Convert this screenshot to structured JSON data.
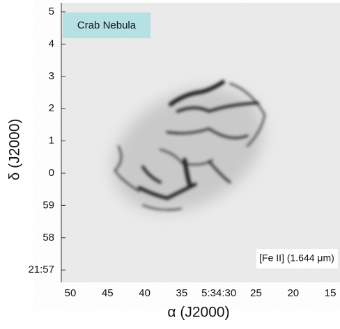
{
  "panel_label": "Crab Nebula",
  "filter_label": "[Fe II] (1.644 μm)",
  "x_axis": {
    "label": "α (J2000)",
    "ticks": [
      "50",
      "45",
      "40",
      "35",
      "5:34:30",
      "25",
      "20",
      "15"
    ]
  },
  "y_axis": {
    "label": "δ (J2000)",
    "ticks": [
      "5",
      "4",
      "3",
      "2",
      "1",
      "0",
      "59",
      "58",
      "21:57"
    ]
  }
}
